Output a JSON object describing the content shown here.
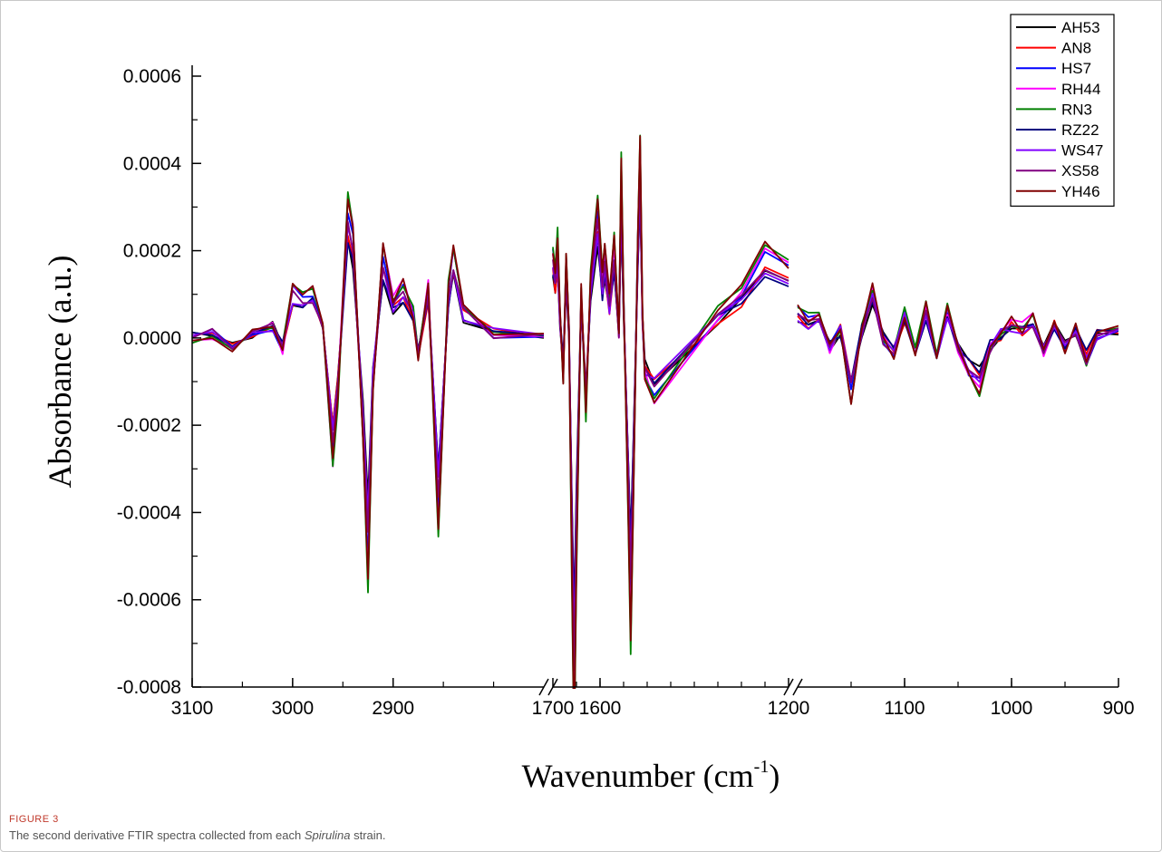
{
  "chart_data": {
    "type": "line",
    "xlabel_main": "Wavenumber (cm",
    "xlabel_sup": "-1",
    "xlabel_tail": ")",
    "ylabel": "Absorbance (a.u.)",
    "ylim": [
      -0.0008,
      0.0006
    ],
    "yticks": [
      "0.0006",
      "0.0004",
      "0.0002",
      "0.0000",
      "-0.0002",
      "-0.0004",
      "-0.0006",
      "-0.0008"
    ],
    "segments": [
      {
        "from": 3100,
        "to": 2750,
        "ticks": [
          "3100",
          "3000",
          "2900"
        ],
        "tick_values": [
          3100,
          3000,
          2900
        ]
      },
      {
        "from": 1700,
        "to": 1200,
        "ticks": [
          "1700",
          "1600",
          "1200"
        ],
        "tick_values": [
          1700,
          1600,
          1200
        ]
      },
      {
        "from": 1200,
        "to": 900,
        "ticks": [
          "1100",
          "1000",
          "900"
        ],
        "tick_values": [
          1100,
          1000,
          900
        ]
      }
    ],
    "legend_position": "top-right",
    "series": [
      {
        "name": "AH53",
        "color": "#000000"
      },
      {
        "name": "AN8",
        "color": "#ff0000"
      },
      {
        "name": "HS7",
        "color": "#0000ff"
      },
      {
        "name": "RH44",
        "color": "#ff00ff"
      },
      {
        "name": "RN3",
        "color": "#008000"
      },
      {
        "name": "RZ22",
        "color": "#000080"
      },
      {
        "name": "WS47",
        "color": "#8000ff"
      },
      {
        "name": "XS58",
        "color": "#800080"
      },
      {
        "name": "YH46",
        "color": "#800000"
      }
    ],
    "base_points": [
      [
        3100,
        0.0
      ],
      [
        3080,
        1e-05
      ],
      [
        3060,
        -2e-05
      ],
      [
        3040,
        1e-05
      ],
      [
        3020,
        3e-05
      ],
      [
        3010,
        -2e-05
      ],
      [
        3000,
        0.0001
      ],
      [
        2990,
        9e-05
      ],
      [
        2980,
        0.0001
      ],
      [
        2970,
        2e-05
      ],
      [
        2960,
        -0.00025
      ],
      [
        2955,
        -0.00012
      ],
      [
        2945,
        0.00028
      ],
      [
        2940,
        0.00022
      ],
      [
        2930,
        -0.0002
      ],
      [
        2925,
        -0.00048
      ],
      [
        2920,
        -0.0001
      ],
      [
        2910,
        0.00018
      ],
      [
        2900,
        8e-05
      ],
      [
        2890,
        0.00011
      ],
      [
        2880,
        5e-05
      ],
      [
        2875,
        -4e-05
      ],
      [
        2865,
        0.00011
      ],
      [
        2855,
        -0.00038
      ],
      [
        2845,
        0.0001
      ],
      [
        2840,
        0.00018
      ],
      [
        2830,
        6e-05
      ],
      [
        2800,
        1e-05
      ],
      [
        2750,
        0.0
      ],
      [
        1700,
        0.00018
      ],
      [
        1695,
        0.00014
      ],
      [
        1690,
        0.0002
      ],
      [
        1685,
        5e-05
      ],
      [
        1678,
        -8e-05
      ],
      [
        1672,
        0.00016
      ],
      [
        1666,
        2e-05
      ],
      [
        1660,
        -0.00045
      ],
      [
        1655,
        -0.0008
      ],
      [
        1650,
        -0.00045
      ],
      [
        1640,
        0.0001
      ],
      [
        1630,
        -0.00015
      ],
      [
        1620,
        0.00012
      ],
      [
        1605,
        0.00028
      ],
      [
        1595,
        0.00012
      ],
      [
        1590,
        0.00018
      ],
      [
        1580,
        8e-05
      ],
      [
        1570,
        0.0002
      ],
      [
        1560,
        1e-05
      ],
      [
        1555,
        0.00035
      ],
      [
        1550,
        8e-05
      ],
      [
        1540,
        -0.00035
      ],
      [
        1535,
        -0.0006
      ],
      [
        1530,
        -0.00035
      ],
      [
        1520,
        0.0002
      ],
      [
        1515,
        0.0004
      ],
      [
        1510,
        5e-05
      ],
      [
        1505,
        -8e-05
      ],
      [
        1485,
        -0.00012
      ],
      [
        1350,
        5e-05
      ],
      [
        1300,
        0.0001
      ],
      [
        1250,
        0.00018
      ],
      [
        1200,
        0.00015
      ],
      [
        1200,
        6e-05
      ],
      [
        1190,
        4e-05
      ],
      [
        1180,
        5e-05
      ],
      [
        1170,
        -2e-05
      ],
      [
        1160,
        2e-05
      ],
      [
        1150,
        -0.00012
      ],
      [
        1140,
        2e-05
      ],
      [
        1130,
        0.0001
      ],
      [
        1120,
        0.0
      ],
      [
        1110,
        -3e-05
      ],
      [
        1100,
        5e-05
      ],
      [
        1090,
        -3e-05
      ],
      [
        1080,
        6e-05
      ],
      [
        1070,
        -4e-05
      ],
      [
        1060,
        6e-05
      ],
      [
        1050,
        -2e-05
      ],
      [
        1040,
        -7e-05
      ],
      [
        1030,
        -0.0001
      ],
      [
        1020,
        -2e-05
      ],
      [
        1010,
        1e-05
      ],
      [
        1000,
        3e-05
      ],
      [
        990,
        2e-05
      ],
      [
        980,
        4e-05
      ],
      [
        970,
        -3e-05
      ],
      [
        960,
        3e-05
      ],
      [
        950,
        -2e-05
      ],
      [
        940,
        2e-05
      ],
      [
        930,
        -5e-05
      ],
      [
        920,
        1e-05
      ],
      [
        900,
        2e-05
      ]
    ]
  },
  "caption": {
    "figure_label": "FIGURE 3",
    "text_before": "The second derivative FTIR spectra collected from each ",
    "text_italic": "Spirulina",
    "text_after": " strain."
  }
}
